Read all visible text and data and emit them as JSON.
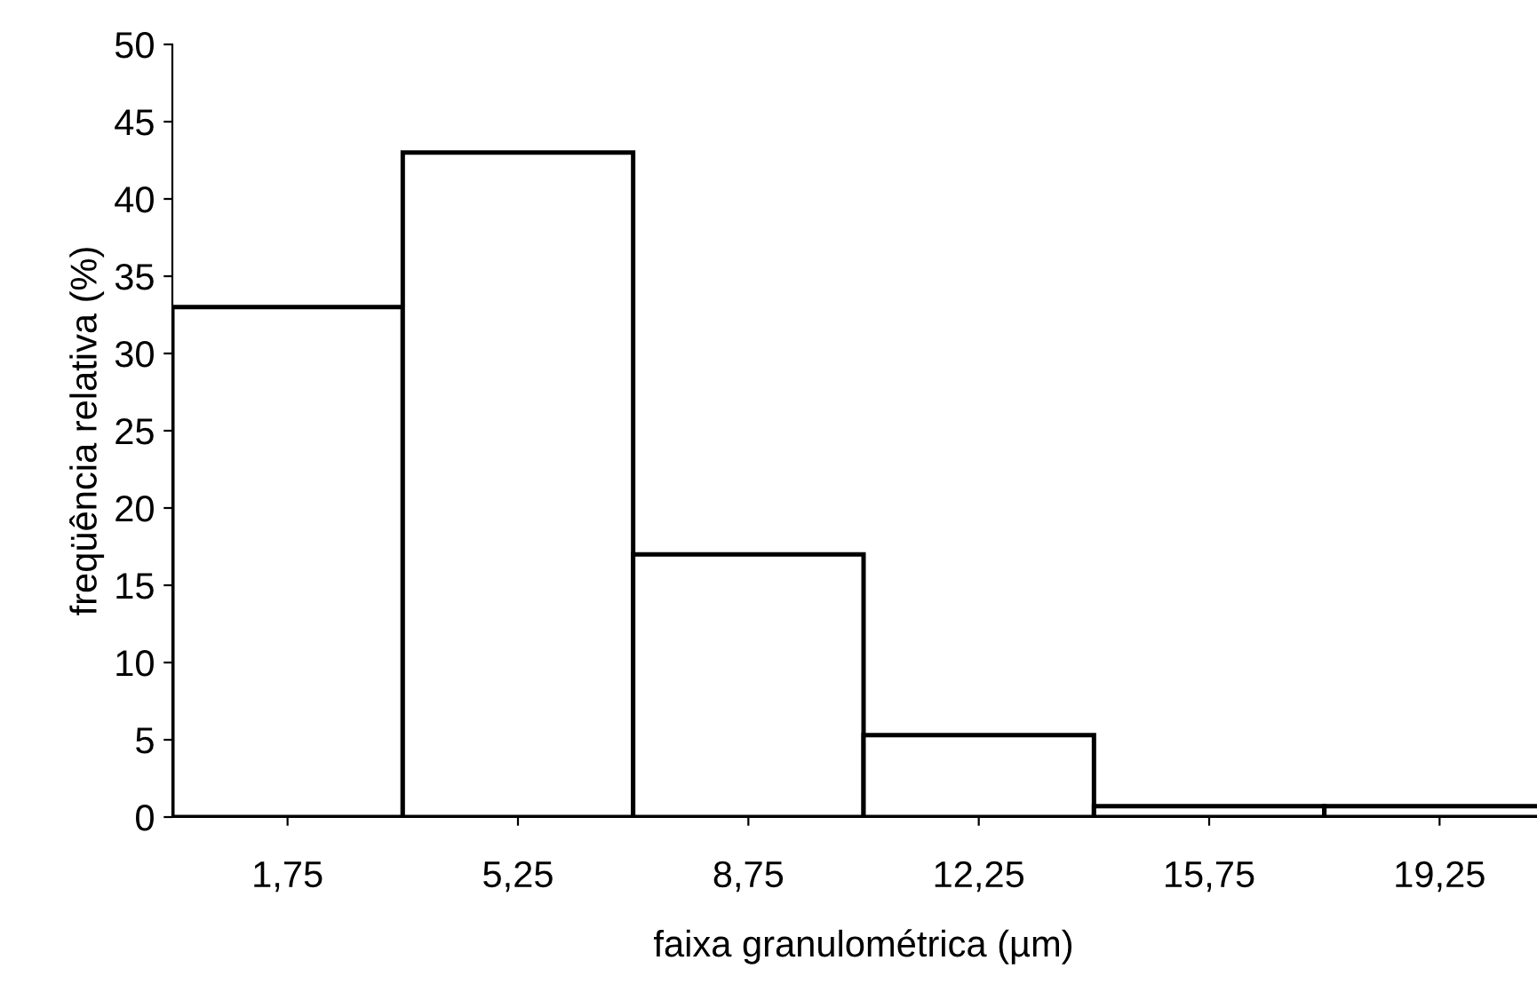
{
  "chart_data": {
    "type": "bar",
    "xlabel": "faixa granulométrica (µm)",
    "ylabel": "freqüência relativa (%)",
    "categories": [
      "1,75",
      "5,25",
      "8,75",
      "12,25",
      "15,75",
      "19,25"
    ],
    "values": [
      33,
      43,
      17,
      5.3,
      0.7,
      0.7
    ],
    "color": "#ffffff",
    "ylim": [
      0,
      50
    ],
    "yticks": [
      0,
      5,
      10,
      15,
      20,
      25,
      30,
      35,
      40,
      45,
      50
    ],
    "grid": false
  }
}
